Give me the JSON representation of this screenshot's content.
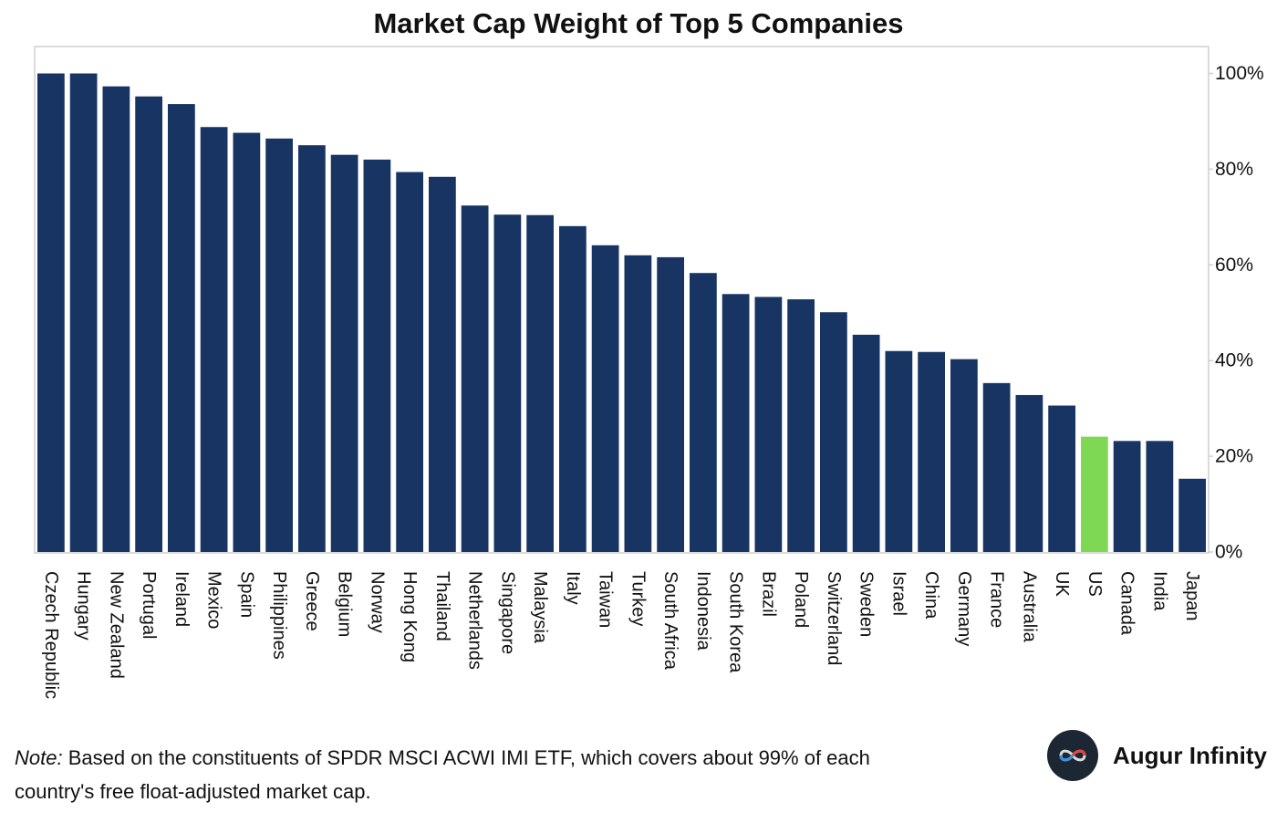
{
  "chart_data": {
    "type": "bar",
    "title": "Market Cap Weight of Top 5 Companies",
    "xlabel": "",
    "ylabel": "",
    "ylim": [
      0,
      105
    ],
    "yticks": [
      0,
      20,
      40,
      60,
      80,
      100
    ],
    "ytick_labels": [
      "0%",
      "20%",
      "40%",
      "60%",
      "80%",
      "100%"
    ],
    "y_axis_side": "right",
    "grid": false,
    "legend": "none",
    "bar_color": "#173463",
    "highlight_color": "#7fd854",
    "highlight_category": "US",
    "categories": [
      "Czech Republic",
      "Hungary",
      "New Zealand",
      "Portugal",
      "Ireland",
      "Mexico",
      "Spain",
      "Philippines",
      "Greece",
      "Belgium",
      "Norway",
      "Hong Kong",
      "Thailand",
      "Netherlands",
      "Singapore",
      "Malaysia",
      "Italy",
      "Taiwan",
      "Turkey",
      "South Africa",
      "Indonesia",
      "South Korea",
      "Brazil",
      "Poland",
      "Switzerland",
      "Sweden",
      "Israel",
      "China",
      "Germany",
      "France",
      "Australia",
      "UK",
      "US",
      "Canada",
      "India",
      "Japan"
    ],
    "values": [
      100,
      100,
      97.3,
      95.2,
      93.6,
      88.8,
      87.6,
      86.4,
      85.0,
      83.0,
      82.0,
      79.4,
      78.4,
      72.4,
      70.5,
      70.4,
      68.1,
      64.1,
      62.0,
      61.6,
      58.3,
      53.9,
      53.3,
      52.8,
      50.1,
      45.4,
      42.0,
      41.8,
      40.3,
      35.3,
      32.8,
      30.6,
      24.1,
      23.2,
      23.2,
      15.3
    ]
  },
  "note": {
    "lead": "Note:",
    "text": " Based on the constituents of SPDR MSCI ACWI IMI ETF, which covers about 99% of each country's free float-adjusted market cap."
  },
  "brand": {
    "name": "Augur Infinity",
    "logo_icon": "infinity-icon"
  }
}
